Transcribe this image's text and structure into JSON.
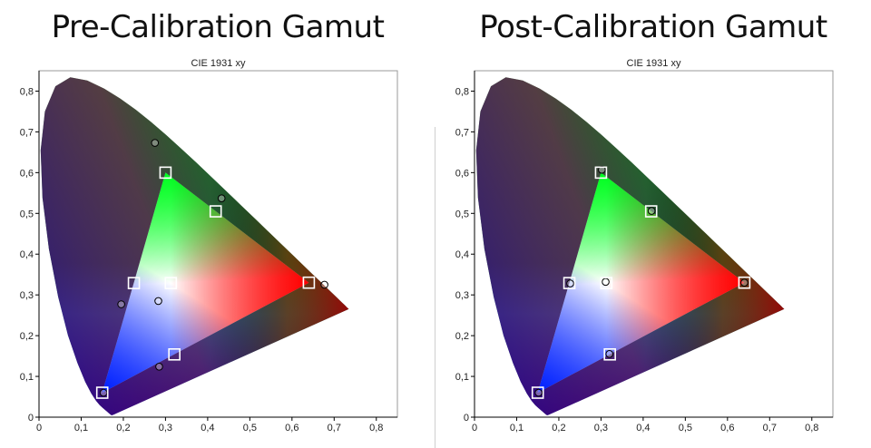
{
  "chart_data": [
    {
      "type": "scatter",
      "heading": "Pre-Calibration Gamut",
      "title": "CIE 1931 xy",
      "xlim": [
        0,
        0.85
      ],
      "ylim": [
        0,
        0.85
      ],
      "x_ticks": [
        "0",
        "0,1",
        "0,2",
        "0,3",
        "0,4",
        "0,5",
        "0,6",
        "0,7",
        "0,8"
      ],
      "y_ticks": [
        "0",
        "0,1",
        "0,2",
        "0,3",
        "0,4",
        "0,5",
        "0,6",
        "0,7",
        "0,8"
      ],
      "target_gamut": {
        "red": {
          "x": 0.64,
          "y": 0.33
        },
        "green": {
          "x": 0.3,
          "y": 0.6
        },
        "blue": {
          "x": 0.15,
          "y": 0.06
        },
        "white": {
          "x": 0.3127,
          "y": 0.329
        }
      },
      "targets": [
        {
          "name": "red",
          "x": 0.64,
          "y": 0.33
        },
        {
          "name": "green",
          "x": 0.3,
          "y": 0.6
        },
        {
          "name": "blue",
          "x": 0.15,
          "y": 0.06
        },
        {
          "name": "cyan",
          "x": 0.225,
          "y": 0.329
        },
        {
          "name": "magenta",
          "x": 0.321,
          "y": 0.154
        },
        {
          "name": "yellow",
          "x": 0.419,
          "y": 0.505
        },
        {
          "name": "white",
          "x": 0.3127,
          "y": 0.329
        }
      ],
      "measured": [
        {
          "name": "red",
          "x": 0.677,
          "y": 0.325
        },
        {
          "name": "green",
          "x": 0.275,
          "y": 0.673
        },
        {
          "name": "blue",
          "x": 0.153,
          "y": 0.06
        },
        {
          "name": "cyan",
          "x": 0.195,
          "y": 0.277
        },
        {
          "name": "magenta",
          "x": 0.285,
          "y": 0.124
        },
        {
          "name": "yellow",
          "x": 0.433,
          "y": 0.537
        },
        {
          "name": "white",
          "x": 0.283,
          "y": 0.285
        }
      ]
    },
    {
      "type": "scatter",
      "heading": "Post-Calibration Gamut",
      "title": "CIE 1931 xy",
      "xlim": [
        0,
        0.85
      ],
      "ylim": [
        0,
        0.85
      ],
      "x_ticks": [
        "0",
        "0,1",
        "0,2",
        "0,3",
        "0,4",
        "0,5",
        "0,6",
        "0,7",
        "0,8"
      ],
      "y_ticks": [
        "0",
        "0,1",
        "0,2",
        "0,3",
        "0,4",
        "0,5",
        "0,6",
        "0,7",
        "0,8"
      ],
      "target_gamut": {
        "red": {
          "x": 0.64,
          "y": 0.33
        },
        "green": {
          "x": 0.3,
          "y": 0.6
        },
        "blue": {
          "x": 0.15,
          "y": 0.06
        },
        "white": {
          "x": 0.3127,
          "y": 0.329
        }
      },
      "targets": [
        {
          "name": "red",
          "x": 0.64,
          "y": 0.33
        },
        {
          "name": "green",
          "x": 0.3,
          "y": 0.6
        },
        {
          "name": "blue",
          "x": 0.15,
          "y": 0.06
        },
        {
          "name": "cyan",
          "x": 0.225,
          "y": 0.329
        },
        {
          "name": "magenta",
          "x": 0.321,
          "y": 0.154
        },
        {
          "name": "yellow",
          "x": 0.419,
          "y": 0.505
        },
        {
          "name": "white",
          "x": 0.3127,
          "y": 0.329
        }
      ],
      "measured": [
        {
          "name": "red",
          "x": 0.64,
          "y": 0.33
        },
        {
          "name": "green",
          "x": 0.302,
          "y": 0.607
        },
        {
          "name": "blue",
          "x": 0.152,
          "y": 0.06
        },
        {
          "name": "cyan",
          "x": 0.227,
          "y": 0.328
        },
        {
          "name": "magenta",
          "x": 0.32,
          "y": 0.155
        },
        {
          "name": "yellow",
          "x": 0.42,
          "y": 0.506
        },
        {
          "name": "white",
          "x": 0.311,
          "y": 0.332
        }
      ]
    }
  ],
  "colors": {
    "green": "#1e9a1e",
    "blue": "#001a8c",
    "red": "#a00000",
    "cyan": "#1aa0a0",
    "white": "#ffffff",
    "marker_stroke": "#000000",
    "target_stroke": "#ffffff",
    "axis": "#000000",
    "frame": "#9a9a9a"
  }
}
